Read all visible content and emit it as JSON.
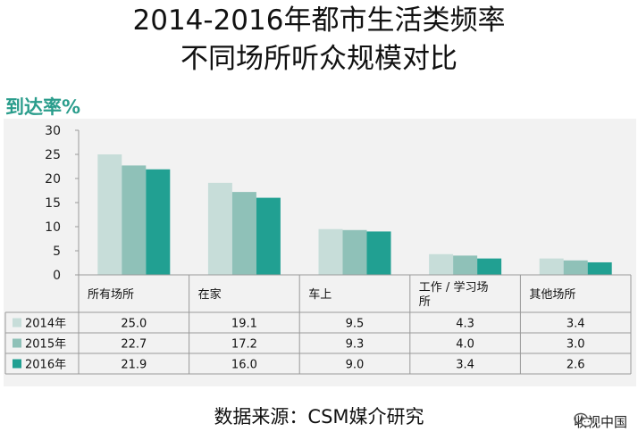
{
  "title_line1": "2014-2016年都市生活类频率",
  "title_line2": "不同场所听众规模对比",
  "chart_data": {
    "type": "bar",
    "ylabel": "到达率%",
    "ylim": [
      0,
      30
    ],
    "yticks": [
      0,
      5,
      10,
      15,
      20,
      25,
      30
    ],
    "categories": [
      "所有场所",
      "在家",
      "车上",
      "工作 / 学习场所",
      "其他场所"
    ],
    "series": [
      {
        "name": "2014年",
        "values": [
          25.0,
          19.1,
          9.5,
          4.3,
          3.4
        ],
        "color": "#c7ddd9"
      },
      {
        "name": "2015年",
        "values": [
          22.7,
          17.2,
          9.3,
          4.0,
          3.0
        ],
        "color": "#8fc1b8"
      },
      {
        "name": "2016年",
        "values": [
          21.9,
          16.0,
          9.0,
          3.4,
          2.6
        ],
        "color": "#21a092"
      }
    ],
    "grid": false,
    "legend": "table-left"
  },
  "source": "数据来源：CSM媒介研究",
  "brand": {
    "label": "收视中国",
    "icon": "wechat-icon"
  }
}
